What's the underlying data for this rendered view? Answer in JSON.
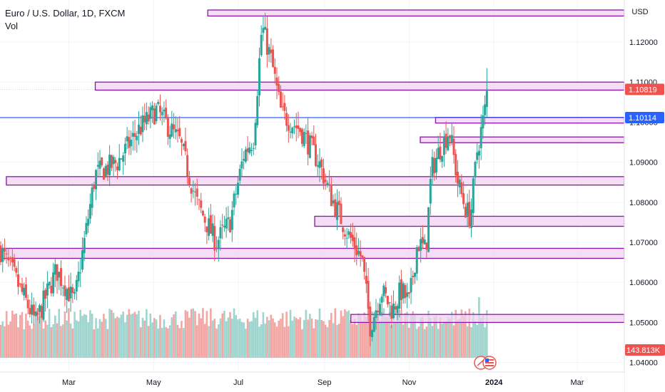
{
  "legend": {
    "symbol": "Euro / U.S. Dollar, 1D, FXCM",
    "indicator": "Vol"
  },
  "currency_button": "USD",
  "colors": {
    "up": "#26a69a",
    "down": "#ef5350",
    "vol_up": "#9fd5cf",
    "vol_down": "#f3a7a5",
    "zone_fill": "#f1d3f1",
    "zone_stroke": "#8a16a8",
    "hline": "#2962ff",
    "last_price_tag": "#ef5350",
    "vol_tag": "#ef5350",
    "hline_tag": "#2962ff"
  },
  "chart_data": {
    "type": "candlestick",
    "title": "Euro / U.S. Dollar, 1D, FXCM",
    "ylim": [
      1.037,
      1.133
    ],
    "y_ticks": [
      "1.12000",
      "1.11000",
      "1.10000",
      "1.09000",
      "1.08000",
      "1.07000",
      "1.06000",
      "1.05000",
      "1.04000"
    ],
    "x_ticks": [
      "Mar",
      "May",
      "Jul",
      "Sep",
      "Nov",
      "2024",
      "Mar"
    ],
    "price_tags": [
      {
        "label": "1.10819",
        "value": 1.10819,
        "kind": "last"
      },
      {
        "label": "1.10114",
        "value": 1.10114,
        "kind": "line"
      }
    ],
    "volume_tag": "143.813K",
    "horizontal_line": 1.10114,
    "zones": [
      {
        "from": "2023-06-09",
        "to": "2024-04-30",
        "low": 1.1265,
        "high": 1.128
      },
      {
        "from": "2023-03-20",
        "to": "2024-04-30",
        "low": 1.108,
        "high": 1.11
      },
      {
        "from": "2023-11-20",
        "to": "2024-04-30",
        "low": 1.1,
        "high": 1.1012
      },
      {
        "from": "2023-11-09",
        "to": "2024-04-30",
        "low": 1.0955,
        "high": 1.0963
      },
      {
        "from": "2023-01-15",
        "to": "2024-04-30",
        "low": 1.0843,
        "high": 1.0864
      },
      {
        "from": "2023-08-25",
        "to": "2024-04-30",
        "low": 1.074,
        "high": 1.0765
      },
      {
        "from": "2022-12-15",
        "to": "2024-04-30",
        "low": 1.066,
        "high": 1.0685
      },
      {
        "from": "2023-09-20",
        "to": "2024-04-30",
        "low": 1.05,
        "high": 1.052
      }
    ],
    "anchors": [
      [
        "2023-01-05",
        1.072
      ],
      [
        "2023-01-20",
        1.062
      ],
      [
        "2023-02-05",
        1.05
      ],
      [
        "2023-02-20",
        1.063
      ],
      [
        "2023-03-05",
        1.055
      ],
      [
        "2023-03-20",
        1.087
      ],
      [
        "2023-04-05",
        1.09
      ],
      [
        "2023-04-20",
        1.098
      ],
      [
        "2023-05-03",
        1.103
      ],
      [
        "2023-05-20",
        1.095
      ],
      [
        "2023-06-01",
        1.08
      ],
      [
        "2023-06-15",
        1.07
      ],
      [
        "2023-06-25",
        1.075
      ],
      [
        "2023-07-05",
        1.092
      ],
      [
        "2023-07-12",
        1.096
      ],
      [
        "2023-07-18",
        1.124
      ],
      [
        "2023-07-25",
        1.115
      ],
      [
        "2023-08-01",
        1.102
      ],
      [
        "2023-08-15",
        1.098
      ],
      [
        "2023-08-28",
        1.09
      ],
      [
        "2023-09-05",
        1.082
      ],
      [
        "2023-09-18",
        1.072
      ],
      [
        "2023-09-28",
        1.066
      ],
      [
        "2023-10-04",
        1.049
      ],
      [
        "2023-10-12",
        1.058
      ],
      [
        "2023-10-20",
        1.053
      ],
      [
        "2023-10-26",
        1.058
      ],
      [
        "2023-11-01",
        1.055
      ],
      [
        "2023-11-07",
        1.07
      ],
      [
        "2023-11-13",
        1.068
      ],
      [
        "2023-11-17",
        1.088
      ],
      [
        "2023-11-24",
        1.094
      ],
      [
        "2023-11-30",
        1.098
      ],
      [
        "2023-12-06",
        1.085
      ],
      [
        "2023-12-12",
        1.078
      ],
      [
        "2023-12-15",
        1.076
      ],
      [
        "2023-12-20",
        1.093
      ],
      [
        "2023-12-24",
        1.1
      ],
      [
        "2023-12-28",
        1.108
      ]
    ]
  }
}
